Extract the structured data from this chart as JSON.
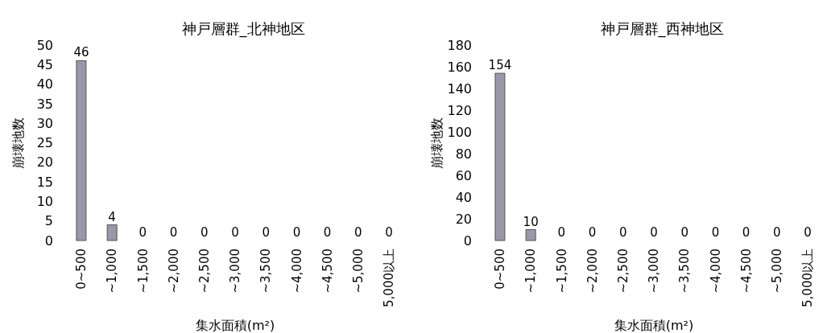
{
  "chart_data": [
    {
      "type": "bar",
      "title": "神戸層群_北神地区",
      "xlabel": "集水面積(m²)",
      "ylabel": "崩壊地数",
      "categories": [
        "0~500",
        "~1,000",
        "~1,500",
        "~2,000",
        "~2,500",
        "~3,000",
        "~3,500",
        "~4,000",
        "~4,500",
        "~5,000",
        "5,000以上"
      ],
      "values": [
        46,
        4,
        0,
        0,
        0,
        0,
        0,
        0,
        0,
        0,
        0
      ],
      "color": "#9898a8",
      "ylim": [
        0,
        50
      ],
      "yticks": [
        0,
        5,
        10,
        15,
        20,
        25,
        30,
        35,
        40,
        45,
        50
      ],
      "data_labels": true
    },
    {
      "type": "bar",
      "title": "神戸層群_西神地区",
      "xlabel": "集水面積(m²)",
      "ylabel": "崩壊地数",
      "categories": [
        "0~500",
        "~1,000",
        "~1,500",
        "~2,000",
        "~2,500",
        "~3,000",
        "~3,500",
        "~4,000",
        "~4,500",
        "~5,000",
        "5,000以上"
      ],
      "values": [
        154,
        10,
        0,
        0,
        0,
        0,
        0,
        0,
        0,
        0,
        0
      ],
      "color": "#9898a8",
      "ylim": [
        0,
        180
      ],
      "yticks": [
        0,
        20,
        40,
        60,
        80,
        100,
        120,
        140,
        160,
        180
      ],
      "data_labels": true
    }
  ]
}
